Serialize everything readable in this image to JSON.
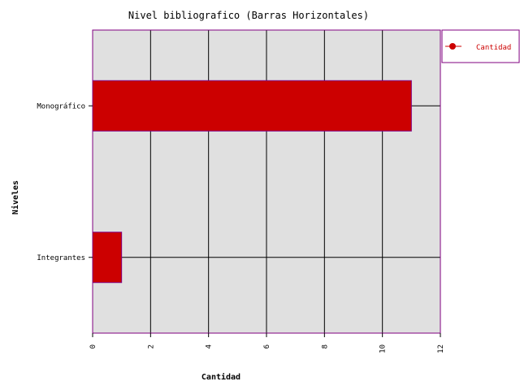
{
  "chart_data": {
    "type": "bar",
    "orientation": "horizontal",
    "title": "Nivel bibliografico (Barras Horizontales)",
    "xlabel": "Cantidad",
    "ylabel": "Niveles",
    "categories": [
      "Monográfico",
      "Integrantes"
    ],
    "series": [
      {
        "name": "Cantidad",
        "values": [
          11,
          1
        ]
      }
    ],
    "xlim": [
      0,
      12
    ],
    "xticks": [
      "0",
      "2",
      "4",
      "6",
      "8",
      "10",
      "12"
    ],
    "grid": true,
    "legend": "top-right",
    "colors": {
      "bar_fill": "#cc0000",
      "bar_stroke": "#800080",
      "plot_background": "#e0e0e0",
      "frame": "#800080",
      "grid": "#000000",
      "legend_text": "#cc0000"
    }
  }
}
